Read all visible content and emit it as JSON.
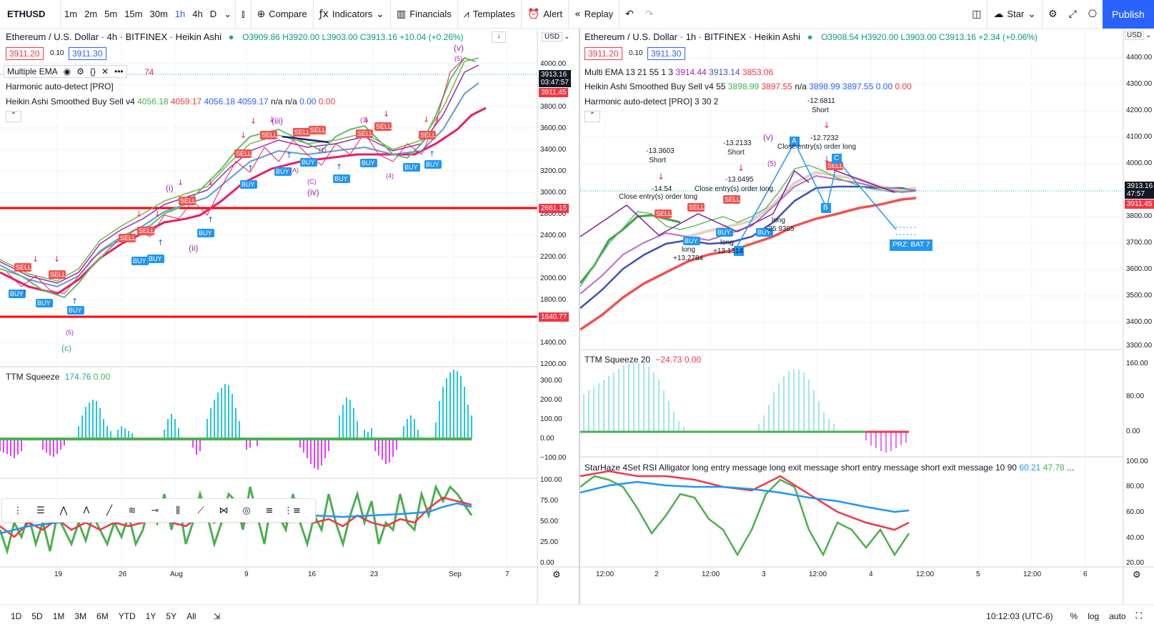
{
  "toolbar": {
    "symbol": "ETHUSD",
    "timeframes": [
      "1m",
      "2m",
      "5m",
      "15m",
      "30m",
      "1h",
      "4h",
      "D"
    ],
    "active_timeframe": "1h",
    "compare": "Compare",
    "indicators": "Indicators",
    "financials": "Financials",
    "templates": "Templates",
    "alert": "Alert",
    "replay": "Replay",
    "star": "Star",
    "publish": "Publish"
  },
  "left": {
    "title": "Ethereum / U.S. Dollar · 4h · BITFINEX · Heikin Ashi",
    "ohlc": "O3909.86 H3920.00 L3903.00 C3913.16 +10.04 (+0.26%)",
    "bid": "3911.20",
    "spread": "0.10",
    "ask": "3911.30",
    "ind1": "Multiple EMA",
    "ind1_tail": "74",
    "ind2": "Harmonic auto-detect [PRO]",
    "ind3": "Heikin Ashi Smoothed Buy Sell v4",
    "ind3_v1": "4056.18",
    "ind3_v2": "4059.17",
    "ind3_v3": "4056.18",
    "ind3_v4": "4059.17",
    "ind3_na": "n/a n/a",
    "ind3_v5": "0.00",
    "ind3_v6": "0.00",
    "currency": "USD",
    "price_tag": "3913.16",
    "price_timer": "03:47:57",
    "price_tag2": "3911.45",
    "level_high": "2661.15",
    "level_low": "1640.77",
    "y_axis": [
      "4000.00",
      "3800.00",
      "3600.00",
      "3400.00",
      "3200.00",
      "3000.00",
      "2800.00",
      "2400.00",
      "2200.00",
      "2000.00",
      "1800.00",
      "1400.00",
      "1200.00"
    ],
    "ttm_label": "TTM Squeeze",
    "ttm_v1": "174.76",
    "ttm_v2": "0.00",
    "ttm_axis": [
      "300.00",
      "200.00",
      "100.00",
      "0.00",
      "−100.00"
    ],
    "rsi_axis": [
      "100.00",
      "75.00",
      "50.00",
      "25.00",
      "0.00"
    ],
    "x_axis": [
      "19",
      "26",
      "Aug",
      "9",
      "16",
      "23",
      "Sep",
      "7"
    ],
    "waves": [
      "(v)",
      "(5)",
      "(iii)",
      "(i)",
      "(ii)",
      "(iv)",
      "(A)",
      "(C)",
      "(1)",
      "(4)",
      "(3)",
      "(5)",
      "(c)"
    ]
  },
  "right": {
    "title": "Ethereum / U.S. Dollar · 1h · BITFINEX · Heikin Ashi",
    "ohlc": "O3908.54 H3920.00 L3903.00 C3913.16 +2.34 (+0.06%)",
    "bid": "3911.20",
    "spread": "0.10",
    "ask": "3911.30",
    "ind1": "Multi EMA 13 21 55 1 3",
    "ind1_v1": "3914.44",
    "ind1_v2": "3913.14",
    "ind1_v3": "3853.06",
    "ind2": "Heikin Ashi Smoothed Buy Sell v4 55",
    "ind2_v1": "3898.99",
    "ind2_v2": "3897.55",
    "ind2_na": "n/a",
    "ind2_v3": "3898.99",
    "ind2_v4": "3897.55",
    "ind2_v5": "0.00",
    "ind2_v6": "0.00",
    "ind3": "Harmonic auto-detect [PRO] 3 30 2",
    "currency": "USD",
    "price_tag": "3913.16",
    "price_timer": "47:57",
    "price_tag2": "3911.45",
    "y_axis": [
      "4400.00",
      "4300.00",
      "4200.00",
      "4100.00",
      "4000.00",
      "3800.00",
      "3700.00",
      "3600.00",
      "3500.00",
      "3400.00",
      "3300.00"
    ],
    "ttm_label": "TTM Squeeze",
    "ttm_len": "20",
    "ttm_v1": "−24.73",
    "ttm_v2": "0.00",
    "ttm_axis": [
      "160.00",
      "80.00",
      "0.00"
    ],
    "rsi_label": "StarHaze 4Set RSI Alligator long entry message long exit message short entry message short exit message 10 90",
    "rsi_v1": "60.21",
    "rsi_v2": "47.78",
    "rsi_ellipsis": "...",
    "rsi_axis": [
      "100.00",
      "80.00",
      "60.00",
      "40.00",
      "20.00"
    ],
    "x_axis": [
      "12:00",
      "2",
      "12:00",
      "3",
      "12:00",
      "4",
      "12:00",
      "5",
      "12:00",
      "6"
    ],
    "annotations": {
      "short1_val": "-13.3603",
      "short1": "Short",
      "short1_b": "-14.54",
      "close1": "Close entry(s) order long",
      "short2_val": "-13.2133",
      "short2": "Short",
      "short2_b": "-13.0495",
      "close2": "Close entry(s) order long",
      "short3_val": "-12.6811",
      "short3": "Short",
      "short3_b": "-12.7232",
      "close3": "Close entry(s) order long",
      "long1": "long",
      "long1_v": "+13.2784",
      "long2": "long",
      "long2_v": "+13.1314",
      "long3": "long",
      "long3_v": "-25.9365",
      "wave_v": "(v)",
      "wave_5": "(5)",
      "prz": "PRZ: BAT 7",
      "point_a": "A",
      "point_b": "B",
      "point_c": "C"
    }
  },
  "bottom": {
    "ranges": [
      "1D",
      "5D",
      "1M",
      "3M",
      "6M",
      "YTD",
      "1Y",
      "5Y",
      "All"
    ],
    "time": "10:12:03 (UTC-6)",
    "pct": "%",
    "log": "log",
    "auto": "auto"
  }
}
